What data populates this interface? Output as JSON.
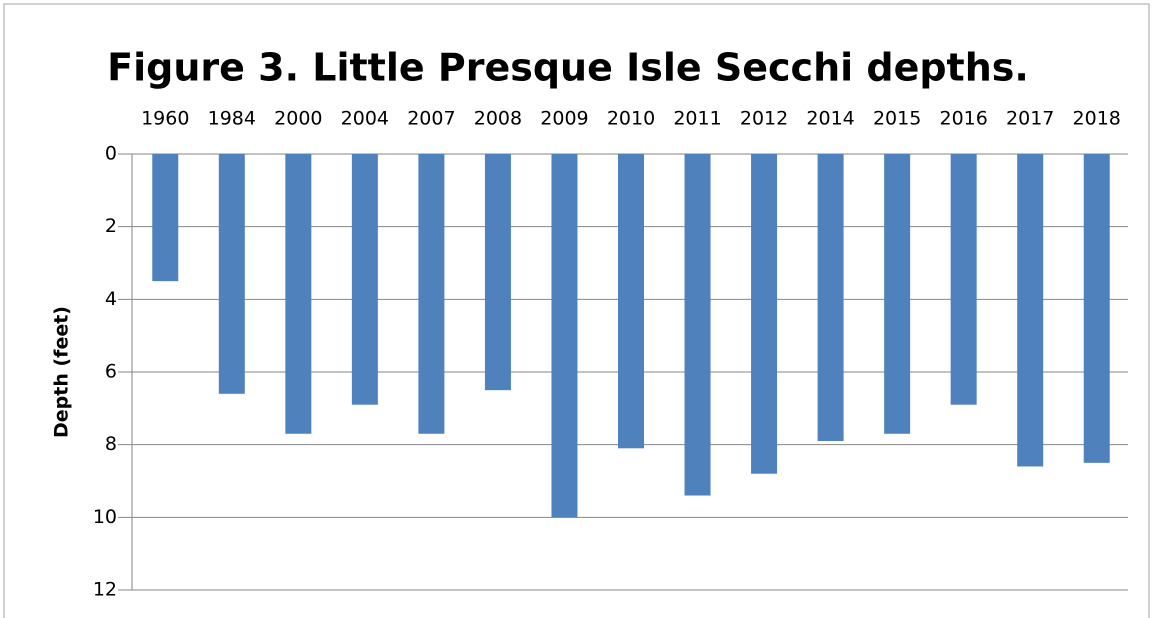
{
  "chart_data": {
    "type": "bar",
    "title": "Figure 3. Little Presque Isle Secchi depths.",
    "y_label": "Depth (feet)",
    "categories": [
      "1960",
      "1984",
      "2000",
      "2004",
      "2007",
      "2008",
      "2009",
      "2010",
      "2011",
      "2012",
      "2014",
      "2015",
      "2016",
      "2017",
      "2018"
    ],
    "values": [
      3.5,
      6.6,
      7.7,
      6.9,
      7.7,
      6.5,
      10,
      8.1,
      9.4,
      8.8,
      7.9,
      7.7,
      6.9,
      8.6,
      8.5
    ],
    "color": "#4f81bd",
    "ylim": [
      0,
      12
    ],
    "yticks": [
      0,
      2,
      4,
      6,
      8,
      10,
      12
    ],
    "y_inverted": true,
    "x_axis_position": "top",
    "grid": true
  }
}
